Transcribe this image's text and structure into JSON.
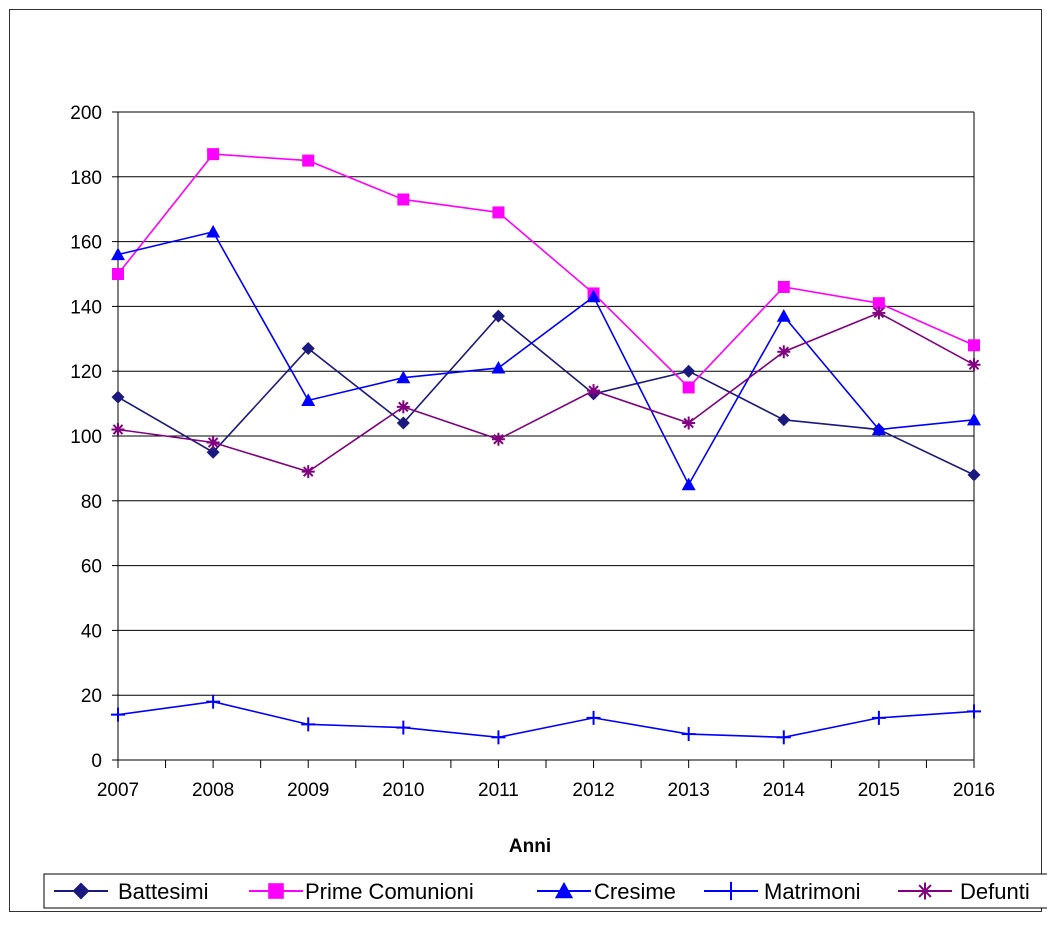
{
  "chart_data": {
    "type": "line",
    "title": "",
    "xlabel": "Anni",
    "ylabel": "",
    "categories": [
      "2007",
      "2008",
      "2009",
      "2010",
      "2011",
      "2012",
      "2013",
      "2014",
      "2015",
      "2016"
    ],
    "ylim": [
      0,
      200
    ],
    "yticks": [
      0,
      20,
      40,
      60,
      80,
      100,
      120,
      140,
      160,
      180,
      200
    ],
    "grid": "horizontal",
    "legend_position": "bottom",
    "series": [
      {
        "name": "Battesimi",
        "color": "#1a1a7e",
        "marker": "diamond",
        "values": [
          112,
          95,
          127,
          104,
          137,
          113,
          120,
          105,
          102,
          88
        ]
      },
      {
        "name": "Prime Comunioni",
        "color": "#ff00ff",
        "marker": "square",
        "values": [
          150,
          187,
          185,
          173,
          169,
          144,
          115,
          146,
          141,
          128
        ]
      },
      {
        "name": "Cresime",
        "color": "#0000ff",
        "marker": "triangle",
        "values": [
          156,
          163,
          111,
          118,
          121,
          143,
          85,
          137,
          102,
          105
        ]
      },
      {
        "name": "Matrimoni",
        "color": "#0000ff",
        "marker": "plus",
        "values": [
          14,
          18,
          11,
          10,
          7,
          13,
          8,
          7,
          13,
          15
        ]
      },
      {
        "name": "Defunti",
        "color": "#800080",
        "marker": "star",
        "values": [
          102,
          98,
          89,
          109,
          99,
          114,
          104,
          126,
          138,
          122
        ]
      }
    ]
  }
}
